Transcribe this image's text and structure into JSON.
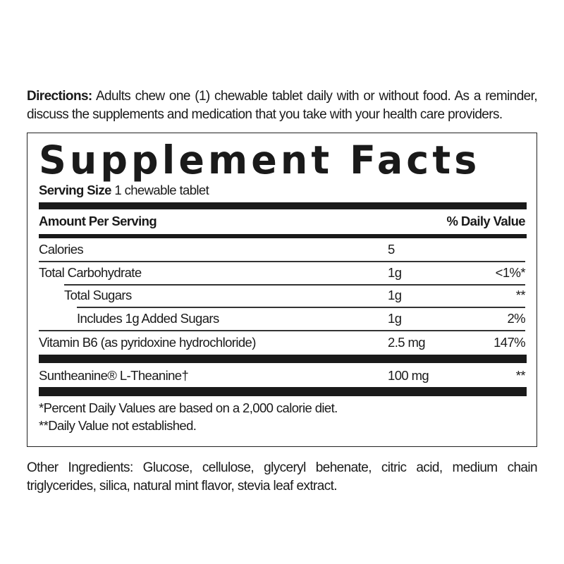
{
  "directions": {
    "label": "Directions:",
    "text": " Adults chew one (1) chewable tablet daily with or without food. As a reminder, discuss the supplements and medication that you take with your health care providers."
  },
  "facts": {
    "title": "Supplement Facts",
    "serving_size_label": "Serving Size",
    "serving_size_value": " 1 chewable tablet",
    "header_amount": "Amount Per Serving",
    "header_dv": "% Daily Value",
    "rows": [
      {
        "name": "Calories",
        "amount": "5",
        "dv": ""
      },
      {
        "name": "Total Carbohydrate",
        "amount": "1g",
        "dv": "<1%*"
      },
      {
        "name": "Total Sugars",
        "amount": "1g",
        "dv": "**"
      },
      {
        "name": "Includes 1g Added Sugars",
        "amount": "1g",
        "dv": "2%"
      },
      {
        "name": "Vitamin B6 (as pyridoxine hydrochloride)",
        "amount": "2.5 mg",
        "dv": "147%"
      },
      {
        "name": "Suntheanine® L-Theanine†",
        "amount": "100 mg",
        "dv": "**"
      }
    ],
    "footnotes": [
      "*Percent Daily Values are based on a 2,000 calorie diet.",
      "**Daily Value not established."
    ]
  },
  "other_ingredients": "Other Ingredients: Glucose, cellulose, glyceryl behenate, citric acid, medium chain triglycerides, silica, natural mint flavor, stevia leaf extract."
}
